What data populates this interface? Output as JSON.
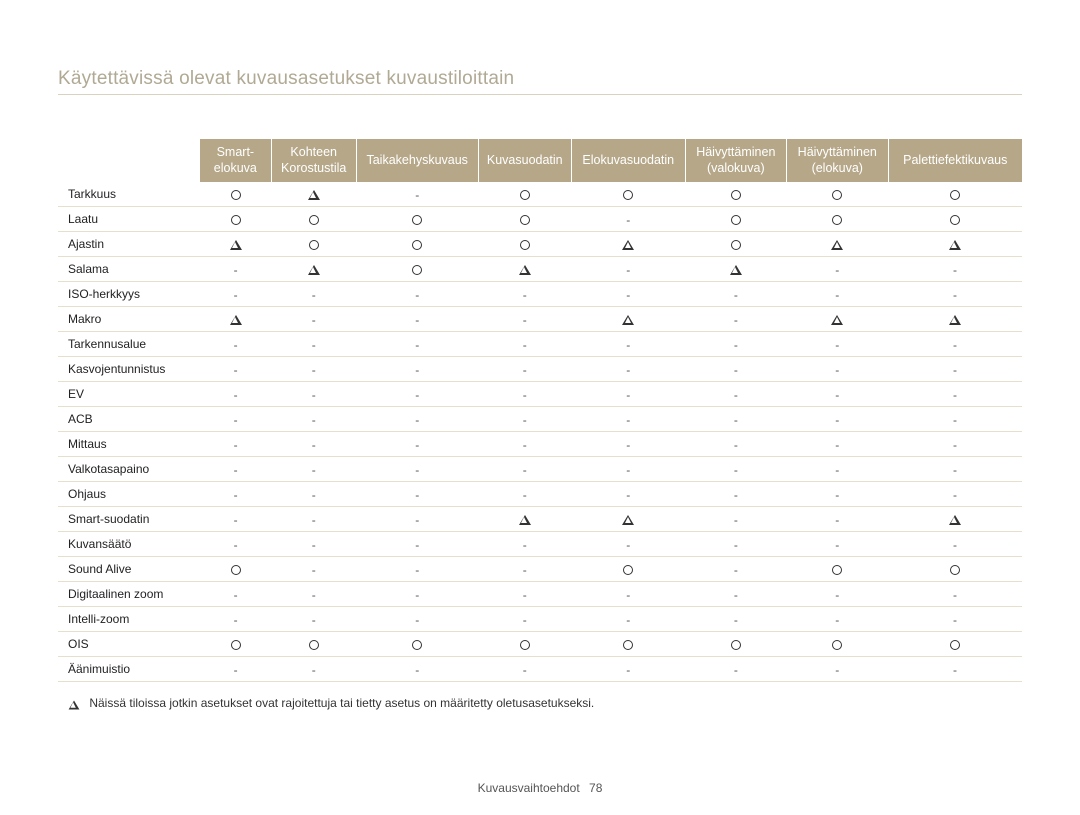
{
  "title": "Käytettävissä olevat kuvausasetukset kuvaustiloittain",
  "footer": {
    "section": "Kuvausvaihtoehdot",
    "page": "78"
  },
  "legend": "Näissä tiloissa jotkin asetukset ovat rajoitettuja tai tietty asetus on määritetty oletusasetukseksi.",
  "table": {
    "header_bg": "#b5a788",
    "header_fg": "#ffffff",
    "row_border": "#e6dfc9",
    "columns": [
      "",
      "Smart-\nelokuva",
      "Kohteen\nKorostustila",
      "Taikakehyskuvaus",
      "Kuvasuodatin",
      "Elokuvasuodatin",
      "Häivyttäminen\n(valokuva)",
      "Häivyttäminen\n(elokuva)",
      "Palettiefektikuvaus"
    ],
    "rows": [
      {
        "label": "Tarkkuus",
        "cells": [
          "O",
          "T",
          "-",
          "O",
          "O",
          "O",
          "O",
          "O"
        ]
      },
      {
        "label": "Laatu",
        "cells": [
          "O",
          "O",
          "O",
          "O",
          "-",
          "O",
          "O",
          "O"
        ]
      },
      {
        "label": "Ajastin",
        "cells": [
          "T",
          "O",
          "O",
          "O",
          "T",
          "O",
          "T",
          "T"
        ]
      },
      {
        "label": "Salama",
        "cells": [
          "-",
          "T",
          "O",
          "T",
          "-",
          "T",
          "-",
          "-"
        ]
      },
      {
        "label": "ISO-herkkyys",
        "cells": [
          "-",
          "-",
          "-",
          "-",
          "-",
          "-",
          "-",
          "-"
        ]
      },
      {
        "label": "Makro",
        "cells": [
          "T",
          "-",
          "-",
          "-",
          "T",
          "-",
          "T",
          "T"
        ]
      },
      {
        "label": "Tarkennusalue",
        "cells": [
          "-",
          "-",
          "-",
          "-",
          "-",
          "-",
          "-",
          "-"
        ]
      },
      {
        "label": "Kasvojentunnistus",
        "cells": [
          "-",
          "-",
          "-",
          "-",
          "-",
          "-",
          "-",
          "-"
        ]
      },
      {
        "label": "EV",
        "cells": [
          "-",
          "-",
          "-",
          "-",
          "-",
          "-",
          "-",
          "-"
        ]
      },
      {
        "label": "ACB",
        "cells": [
          "-",
          "-",
          "-",
          "-",
          "-",
          "-",
          "-",
          "-"
        ]
      },
      {
        "label": "Mittaus",
        "cells": [
          "-",
          "-",
          "-",
          "-",
          "-",
          "-",
          "-",
          "-"
        ]
      },
      {
        "label": "Valkotasapaino",
        "cells": [
          "-",
          "-",
          "-",
          "-",
          "-",
          "-",
          "-",
          "-"
        ]
      },
      {
        "label": "Ohjaus",
        "cells": [
          "-",
          "-",
          "-",
          "-",
          "-",
          "-",
          "-",
          "-"
        ]
      },
      {
        "label": "Smart-suodatin",
        "cells": [
          "-",
          "-",
          "-",
          "T",
          "T",
          "-",
          "-",
          "T"
        ]
      },
      {
        "label": "Kuvansäätö",
        "cells": [
          "-",
          "-",
          "-",
          "-",
          "-",
          "-",
          "-",
          "-"
        ]
      },
      {
        "label": "Sound Alive",
        "cells": [
          "O",
          "-",
          "-",
          "-",
          "O",
          "-",
          "O",
          "O"
        ]
      },
      {
        "label": "Digitaalinen zoom",
        "cells": [
          "-",
          "-",
          "-",
          "-",
          "-",
          "-",
          "-",
          "-"
        ]
      },
      {
        "label": "Intelli-zoom",
        "cells": [
          "-",
          "-",
          "-",
          "-",
          "-",
          "-",
          "-",
          "-"
        ]
      },
      {
        "label": "OIS",
        "cells": [
          "O",
          "O",
          "O",
          "O",
          "O",
          "O",
          "O",
          "O"
        ]
      },
      {
        "label": "Äänimuistio",
        "cells": [
          "-",
          "-",
          "-",
          "-",
          "-",
          "-",
          "-",
          "-"
        ]
      }
    ]
  }
}
